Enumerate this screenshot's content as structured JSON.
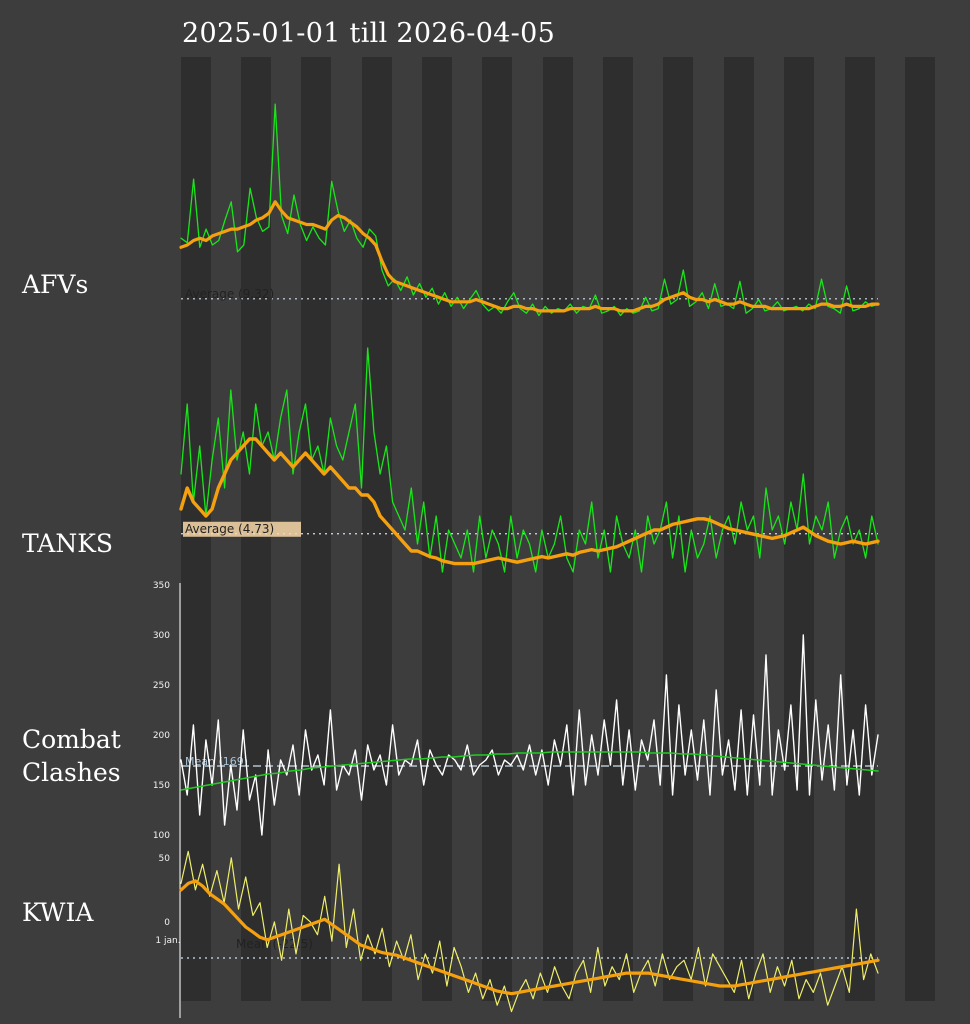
{
  "title": "2025-01-01 till 2026-04-05",
  "colors": {
    "background": "#3d3d3d",
    "stripe": "#2e2e2e",
    "raw_green": "#19e619",
    "smooth_orange": "#f5a00f",
    "raw_white": "#ffffff",
    "trend_green": "#22cc22",
    "raw_yellow": "#eeee6a",
    "average_line": "#cfe0ee"
  },
  "chart_data": [
    {
      "type": "line",
      "panel": "AFVs",
      "x_range": [
        "2025-01-01",
        "2026-04-05"
      ],
      "series": [
        {
          "values": [
            36,
            34,
            62,
            32,
            40,
            33,
            35,
            44,
            52,
            30,
            33,
            58,
            45,
            39,
            41,
            95,
            46,
            38,
            55,
            42,
            35,
            41,
            36,
            33,
            61,
            48,
            39,
            44,
            36,
            32,
            40,
            37,
            22,
            15,
            18,
            13,
            19,
            11,
            16,
            10,
            14,
            7,
            12,
            6,
            10,
            5,
            9,
            13,
            7,
            4,
            6,
            3,
            8,
            12,
            5,
            3,
            7,
            2,
            6,
            3,
            5,
            4,
            7,
            3,
            6,
            5,
            11,
            3,
            4,
            6,
            2,
            5,
            3,
            4,
            10,
            4,
            5,
            18,
            7,
            9,
            22,
            6,
            8,
            12,
            5,
            16,
            6,
            7,
            5,
            17,
            3,
            5,
            9,
            4,
            5,
            8,
            4,
            5,
            6,
            4,
            7,
            5,
            18,
            6,
            5,
            3,
            15,
            4,
            5,
            8,
            6,
            7
          ]
        },
        {
          "values": [
            32,
            33,
            35,
            36,
            35,
            37,
            38,
            39,
            40,
            40,
            41,
            42,
            44,
            45,
            47,
            52,
            48,
            45,
            44,
            43,
            42,
            42,
            41,
            40,
            44,
            46,
            45,
            43,
            41,
            38,
            36,
            33,
            26,
            20,
            17,
            16,
            15,
            14,
            13,
            12,
            11,
            10,
            9,
            8,
            8,
            8,
            8,
            9,
            8,
            7,
            6,
            5,
            5,
            6,
            6,
            5,
            5,
            4,
            4,
            4,
            4,
            4,
            5,
            5,
            5,
            5,
            6,
            5,
            5,
            5,
            4,
            4,
            4,
            5,
            6,
            6,
            7,
            9,
            10,
            11,
            12,
            10,
            9,
            9,
            8,
            9,
            8,
            7,
            7,
            8,
            7,
            6,
            6,
            6,
            5,
            5,
            5,
            5,
            5,
            5,
            5,
            6,
            7,
            7,
            6,
            6,
            7,
            6,
            6,
            6,
            7,
            7
          ]
        }
      ],
      "average_label": "Average (9.32)",
      "average": 9.32,
      "ylim": [
        0,
        110
      ]
    },
    {
      "type": "line",
      "panel": "TANKS",
      "x_range": [
        "2025-01-01",
        "2026-04-05"
      ],
      "series": [
        {
          "values": [
            9,
            14,
            7,
            11,
            6,
            10,
            13,
            8,
            15,
            10,
            12,
            9,
            14,
            11,
            12,
            10,
            13,
            15,
            9,
            12,
            14,
            10,
            11,
            9,
            13,
            11,
            10,
            12,
            14,
            8,
            18,
            12,
            9,
            11,
            7,
            6,
            5,
            8,
            4,
            7,
            3,
            6,
            2,
            5,
            4,
            3,
            5,
            2,
            6,
            3,
            5,
            4,
            2,
            6,
            3,
            5,
            4,
            2,
            5,
            3,
            4,
            6,
            3,
            2,
            5,
            4,
            7,
            3,
            5,
            2,
            6,
            4,
            3,
            5,
            2,
            6,
            4,
            5,
            7,
            3,
            6,
            2,
            5,
            3,
            4,
            6,
            3,
            5,
            6,
            4,
            7,
            5,
            6,
            3,
            8,
            5,
            6,
            4,
            7,
            5,
            9,
            4,
            6,
            5,
            7,
            3,
            5,
            6,
            4,
            5,
            3,
            6,
            4
          ]
        },
        {
          "values": [
            6.5,
            8,
            7,
            6.5,
            6,
            6.5,
            8,
            9,
            10,
            10.5,
            11,
            11.5,
            11.5,
            11,
            10.5,
            10,
            10.5,
            10,
            9.5,
            10,
            10.5,
            10,
            9.5,
            9,
            9.5,
            9,
            8.5,
            8,
            8,
            7.5,
            7.5,
            7,
            6,
            5.5,
            5,
            4.5,
            4,
            3.5,
            3.5,
            3.3,
            3.1,
            3,
            2.8,
            2.7,
            2.6,
            2.6,
            2.6,
            2.6,
            2.7,
            2.8,
            2.9,
            3,
            2.9,
            2.8,
            2.7,
            2.8,
            2.9,
            3,
            3.1,
            3,
            3.1,
            3.2,
            3.3,
            3.2,
            3.4,
            3.5,
            3.6,
            3.5,
            3.6,
            3.7,
            3.8,
            4,
            4.2,
            4.4,
            4.6,
            4.8,
            5,
            5,
            5.2,
            5.4,
            5.5,
            5.6,
            5.7,
            5.8,
            5.8,
            5.7,
            5.5,
            5.3,
            5.1,
            5,
            4.9,
            4.8,
            4.7,
            4.6,
            4.5,
            4.4,
            4.5,
            4.6,
            4.8,
            5,
            5.2,
            4.9,
            4.6,
            4.4,
            4.2,
            4.1,
            4,
            4.1,
            4.2,
            4.1,
            4,
            4.1,
            4.2
          ]
        }
      ],
      "average_label": "Average (4.73)",
      "average": 4.73,
      "ylim": [
        0,
        20
      ]
    },
    {
      "type": "line",
      "panel": "Combat Clashes",
      "x_range": [
        "2025-01-01",
        "2026-04-05"
      ],
      "series": [
        {
          "values": [
            175,
            140,
            210,
            120,
            195,
            150,
            215,
            110,
            170,
            125,
            205,
            135,
            160,
            100,
            185,
            130,
            175,
            160,
            190,
            140,
            205,
            165,
            180,
            150,
            225,
            145,
            170,
            160,
            185,
            135,
            190,
            165,
            180,
            150,
            210,
            160,
            175,
            170,
            195,
            150,
            185,
            170,
            160,
            180,
            175,
            165,
            190,
            160,
            170,
            175,
            185,
            160,
            175,
            170,
            180,
            165,
            190,
            160,
            185,
            150,
            195,
            170,
            210,
            140,
            225,
            150,
            200,
            160,
            215,
            170,
            235,
            150,
            205,
            145,
            195,
            175,
            215,
            150,
            260,
            140,
            230,
            160,
            205,
            155,
            215,
            140,
            245,
            160,
            195,
            145,
            225,
            140,
            220,
            150,
            280,
            140,
            205,
            165,
            230,
            145,
            300,
            140,
            235,
            155,
            210,
            145,
            260,
            150,
            205,
            140,
            230,
            160,
            200
          ],
          "name": ""
        },
        {
          "values": [
            145,
            147,
            149,
            151,
            153,
            155,
            157,
            159,
            161,
            162,
            164,
            165,
            167,
            168,
            169,
            170,
            171,
            172,
            173,
            174,
            175,
            176,
            176,
            177,
            178,
            178,
            179,
            180,
            180,
            181,
            181,
            182,
            182,
            182,
            183,
            183,
            183,
            183,
            183,
            183,
            183,
            183,
            183,
            182,
            182,
            182,
            181,
            181,
            180,
            179,
            178,
            177,
            176,
            175,
            174,
            173,
            172,
            171,
            170,
            169,
            168,
            167,
            166,
            165,
            164
          ]
        }
      ],
      "average_label": "Mean (169)",
      "average": 169,
      "y_ticks": [
        "350",
        "300",
        "250",
        "200",
        "150",
        "100"
      ],
      "y_tick_values": [
        350,
        300,
        250,
        200,
        150,
        100
      ],
      "ylim": [
        90,
        350
      ]
    },
    {
      "type": "line",
      "panel": "KWIA",
      "x_range": [
        "2025-01-01",
        "2026-04-05"
      ],
      "series": [
        {
          "values": [
            30,
            55,
            25,
            45,
            20,
            40,
            15,
            50,
            10,
            35,
            5,
            15,
            -20,
            0,
            -30,
            10,
            -25,
            5,
            0,
            -10,
            20,
            -15,
            45,
            -20,
            10,
            -30,
            -10,
            -25,
            -5,
            -35,
            -15,
            -30,
            -10,
            -45,
            -25,
            -40,
            -15,
            -50,
            -20,
            -35,
            -55,
            -40,
            -60,
            -45,
            -65,
            -50,
            -70,
            -55,
            -45,
            -60,
            -40,
            -55,
            -35,
            -50,
            -60,
            -40,
            -30,
            -55,
            -20,
            -50,
            -35,
            -45,
            -25,
            -55,
            -40,
            -30,
            -50,
            -25,
            -45,
            -35,
            -30,
            -45,
            -20,
            -50,
            -25,
            -35,
            -45,
            -55,
            -30,
            -60,
            -40,
            -25,
            -55,
            -35,
            -50,
            -30,
            -60,
            -45,
            -55,
            -40,
            -65,
            -50,
            -35,
            -55,
            10,
            -45,
            -25,
            -40
          ]
        },
        {
          "values": [
            25,
            30,
            32,
            28,
            22,
            18,
            14,
            8,
            2,
            -4,
            -8,
            -12,
            -14,
            -12,
            -10,
            -8,
            -6,
            -4,
            -2,
            0,
            2,
            -2,
            -6,
            -10,
            -14,
            -18,
            -20,
            -22,
            -24,
            -25,
            -26,
            -28,
            -30,
            -32,
            -34,
            -36,
            -38,
            -40,
            -42,
            -44,
            -46,
            -48,
            -50,
            -52,
            -54,
            -55,
            -56,
            -55,
            -54,
            -53,
            -52,
            -51,
            -50,
            -49,
            -48,
            -47,
            -46,
            -45,
            -44,
            -43,
            -42,
            -41,
            -40,
            -40,
            -40,
            -40,
            -41,
            -42,
            -43,
            -44,
            -45,
            -46,
            -47,
            -48,
            -49,
            -50,
            -50,
            -50,
            -49,
            -48,
            -47,
            -46,
            -45,
            -44,
            -43,
            -42,
            -41,
            -40,
            -39,
            -38,
            -37,
            -36,
            -35,
            -34,
            -33,
            -32,
            -31,
            -30
          ]
        }
      ],
      "average_label": "Mean (-22.5)",
      "y_ticks": [
        "50",
        "0"
      ],
      "y_tick_values": [
        50,
        0
      ],
      "x_tick": "1 jan.",
      "ylim": [
        -75,
        60
      ]
    }
  ],
  "labels": {
    "afvs": "AFVs",
    "tanks": "TANKS",
    "combat": "Combat\nClashes",
    "kwia": "KWIA"
  }
}
